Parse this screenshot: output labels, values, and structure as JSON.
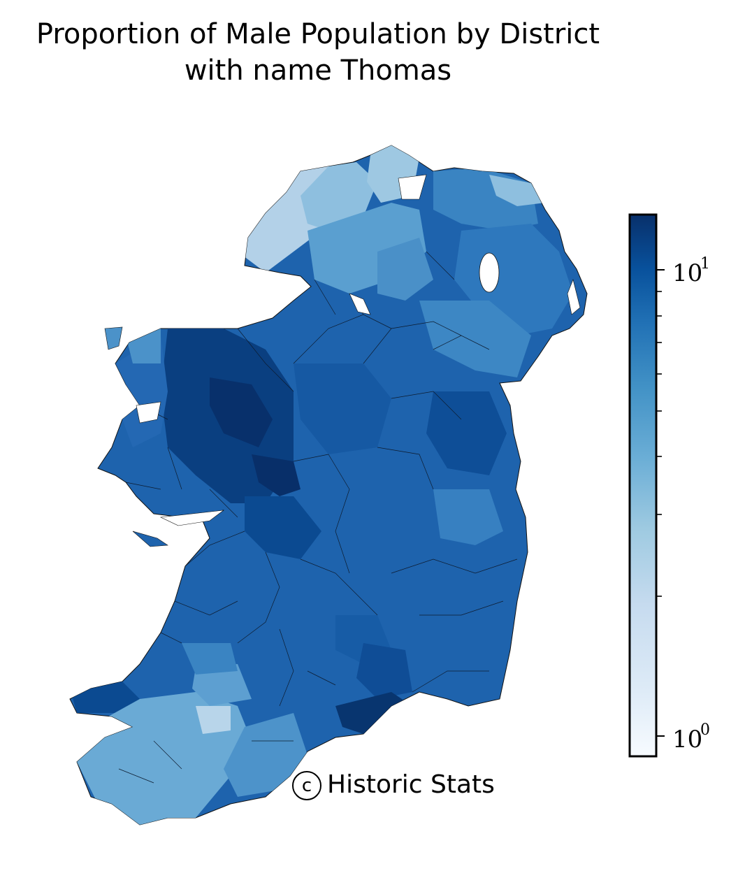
{
  "title": {
    "line1": "Proportion of Male Population by District",
    "line2": "with name Thomas"
  },
  "colorbar": {
    "scale": "log",
    "colormap": "Blues",
    "range": [
      0.9,
      14
    ],
    "ticks": [
      {
        "base": "10",
        "exp": "1",
        "value": 10
      },
      {
        "base": "10",
        "exp": "0",
        "value": 1
      }
    ]
  },
  "map": {
    "region": "Ireland",
    "dominant_color": "#1f63b0",
    "darkest_color": "#08306b",
    "lightest_color": "#c6dbef"
  },
  "credit": {
    "symbol": "c",
    "text": "Historic Stats"
  }
}
